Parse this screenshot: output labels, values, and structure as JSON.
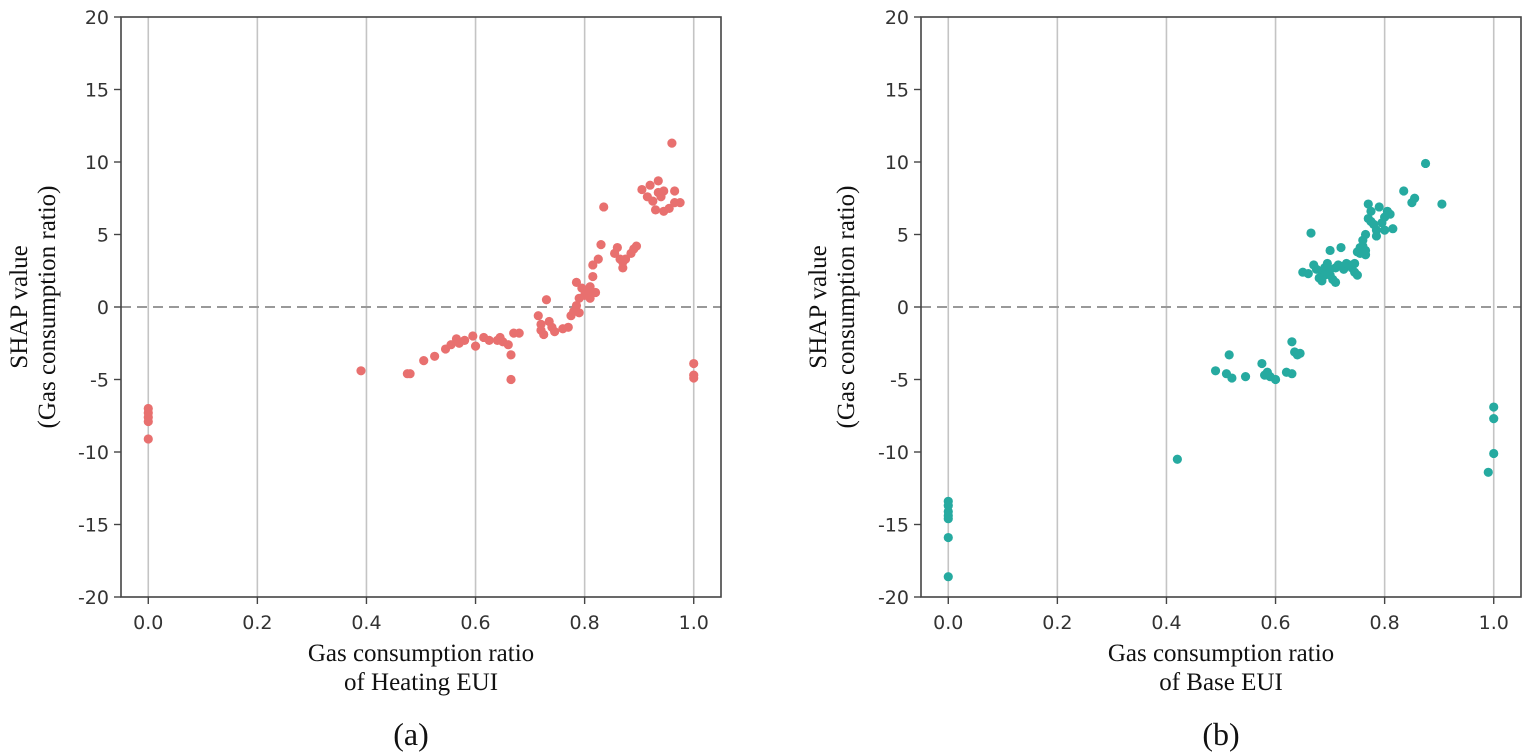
{
  "chart_data": [
    {
      "type": "scatter",
      "caption": "(a)",
      "xlabel": [
        "Gas consumption ratio",
        "of Heating EUI"
      ],
      "ylabel": [
        "SHAP value",
        "(Gas consumption ratio)"
      ],
      "xlim": [
        -0.05,
        1.05
      ],
      "ylim": [
        -20,
        20
      ],
      "xticks": [
        "0.0",
        "0.2",
        "0.4",
        "0.6",
        "0.8",
        "1.0"
      ],
      "xtick_values": [
        0.0,
        0.2,
        0.4,
        0.6,
        0.8,
        1.0
      ],
      "yticks": [
        "20",
        "15",
        "10",
        "5",
        "0",
        "-5",
        "-10",
        "-15",
        "-20"
      ],
      "ytick_values": [
        20,
        15,
        10,
        5,
        0,
        -5,
        -10,
        -15,
        -20
      ],
      "grid": "vertical",
      "reference_line": 0,
      "color": "#e8706f",
      "points": [
        [
          0.0,
          -7.0
        ],
        [
          0.0,
          -7.3
        ],
        [
          0.0,
          -7.6
        ],
        [
          0.0,
          -7.9
        ],
        [
          0.0,
          -9.1
        ],
        [
          0.39,
          -4.4
        ],
        [
          0.475,
          -4.6
        ],
        [
          0.48,
          -4.6
        ],
        [
          0.505,
          -3.7
        ],
        [
          0.525,
          -3.4
        ],
        [
          0.545,
          -2.9
        ],
        [
          0.555,
          -2.6
        ],
        [
          0.565,
          -2.2
        ],
        [
          0.57,
          -2.5
        ],
        [
          0.58,
          -2.3
        ],
        [
          0.595,
          -2.0
        ],
        [
          0.6,
          -2.7
        ],
        [
          0.615,
          -2.1
        ],
        [
          0.625,
          -2.3
        ],
        [
          0.64,
          -2.3
        ],
        [
          0.645,
          -2.1
        ],
        [
          0.65,
          -2.4
        ],
        [
          0.66,
          -2.6
        ],
        [
          0.665,
          -3.3
        ],
        [
          0.665,
          -5.0
        ],
        [
          0.67,
          -1.8
        ],
        [
          0.68,
          -1.8
        ],
        [
          0.715,
          -0.6
        ],
        [
          0.72,
          -1.2
        ],
        [
          0.72,
          -1.6
        ],
        [
          0.725,
          -1.9
        ],
        [
          0.73,
          0.5
        ],
        [
          0.735,
          -1.0
        ],
        [
          0.74,
          -1.4
        ],
        [
          0.745,
          -1.7
        ],
        [
          0.76,
          -1.5
        ],
        [
          0.77,
          -1.4
        ],
        [
          0.775,
          -0.6
        ],
        [
          0.78,
          -0.3
        ],
        [
          0.785,
          0.1
        ],
        [
          0.785,
          1.7
        ],
        [
          0.79,
          -0.4
        ],
        [
          0.79,
          0.6
        ],
        [
          0.795,
          1.3
        ],
        [
          0.8,
          0.8
        ],
        [
          0.805,
          1.0
        ],
        [
          0.81,
          0.6
        ],
        [
          0.81,
          1.4
        ],
        [
          0.815,
          2.1
        ],
        [
          0.815,
          2.9
        ],
        [
          0.82,
          1.0
        ],
        [
          0.825,
          3.3
        ],
        [
          0.83,
          4.3
        ],
        [
          0.835,
          6.9
        ],
        [
          0.855,
          3.7
        ],
        [
          0.86,
          4.1
        ],
        [
          0.865,
          3.3
        ],
        [
          0.87,
          3.1
        ],
        [
          0.87,
          2.7
        ],
        [
          0.875,
          3.3
        ],
        [
          0.885,
          3.7
        ],
        [
          0.89,
          4.0
        ],
        [
          0.895,
          4.2
        ],
        [
          0.905,
          8.1
        ],
        [
          0.915,
          7.6
        ],
        [
          0.92,
          8.4
        ],
        [
          0.925,
          7.3
        ],
        [
          0.93,
          6.7
        ],
        [
          0.935,
          8.7
        ],
        [
          0.935,
          7.9
        ],
        [
          0.94,
          7.6
        ],
        [
          0.945,
          8.0
        ],
        [
          0.945,
          6.6
        ],
        [
          0.955,
          6.8
        ],
        [
          0.96,
          11.3
        ],
        [
          0.965,
          8.0
        ],
        [
          0.965,
          7.2
        ],
        [
          0.975,
          7.2
        ],
        [
          1.0,
          -3.9
        ],
        [
          1.0,
          -4.7
        ],
        [
          1.0,
          -4.9
        ]
      ]
    },
    {
      "type": "scatter",
      "caption": "(b)",
      "xlabel": [
        "Gas consumption ratio",
        "of Base EUI"
      ],
      "ylabel": [
        "SHAP value",
        "(Gas consumption ratio)"
      ],
      "xlim": [
        -0.05,
        1.05
      ],
      "ylim": [
        -20,
        20
      ],
      "xticks": [
        "0.0",
        "0.2",
        "0.4",
        "0.6",
        "0.8",
        "1.0"
      ],
      "xtick_values": [
        0.0,
        0.2,
        0.4,
        0.6,
        0.8,
        1.0
      ],
      "yticks": [
        "20",
        "15",
        "10",
        "5",
        "0",
        "-5",
        "-10",
        "-15",
        "-20"
      ],
      "ytick_values": [
        20,
        15,
        10,
        5,
        0,
        -5,
        -10,
        -15,
        -20
      ],
      "grid": "vertical",
      "reference_line": 0,
      "color": "#26aaa0",
      "points": [
        [
          0.0,
          -13.4
        ],
        [
          0.0,
          -13.7
        ],
        [
          0.0,
          -14.1
        ],
        [
          0.0,
          -14.4
        ],
        [
          0.0,
          -14.6
        ],
        [
          0.0,
          -15.9
        ],
        [
          0.0,
          -18.6
        ],
        [
          0.42,
          -10.5
        ],
        [
          0.49,
          -4.4
        ],
        [
          0.51,
          -4.6
        ],
        [
          0.515,
          -3.3
        ],
        [
          0.52,
          -4.9
        ],
        [
          0.545,
          -4.8
        ],
        [
          0.575,
          -3.9
        ],
        [
          0.58,
          -4.7
        ],
        [
          0.585,
          -4.5
        ],
        [
          0.59,
          -4.8
        ],
        [
          0.6,
          -5.0
        ],
        [
          0.62,
          -4.5
        ],
        [
          0.63,
          -4.6
        ],
        [
          0.63,
          -2.4
        ],
        [
          0.635,
          -3.1
        ],
        [
          0.64,
          -3.3
        ],
        [
          0.645,
          -3.2
        ],
        [
          0.65,
          2.4
        ],
        [
          0.66,
          2.3
        ],
        [
          0.665,
          5.1
        ],
        [
          0.67,
          2.9
        ],
        [
          0.675,
          2.6
        ],
        [
          0.68,
          2.0
        ],
        [
          0.685,
          1.8
        ],
        [
          0.685,
          2.4
        ],
        [
          0.69,
          2.7
        ],
        [
          0.69,
          2.2
        ],
        [
          0.695,
          3.0
        ],
        [
          0.7,
          3.9
        ],
        [
          0.7,
          2.6
        ],
        [
          0.7,
          2.2
        ],
        [
          0.705,
          1.9
        ],
        [
          0.71,
          2.7
        ],
        [
          0.71,
          1.7
        ],
        [
          0.715,
          2.9
        ],
        [
          0.72,
          2.8
        ],
        [
          0.72,
          4.1
        ],
        [
          0.725,
          2.6
        ],
        [
          0.73,
          3.0
        ],
        [
          0.735,
          2.9
        ],
        [
          0.74,
          2.7
        ],
        [
          0.745,
          3.0
        ],
        [
          0.745,
          2.4
        ],
        [
          0.75,
          3.8
        ],
        [
          0.75,
          2.2
        ],
        [
          0.755,
          4.1
        ],
        [
          0.755,
          3.7
        ],
        [
          0.76,
          4.6
        ],
        [
          0.76,
          4.2
        ],
        [
          0.765,
          5.0
        ],
        [
          0.765,
          3.9
        ],
        [
          0.765,
          3.6
        ],
        [
          0.77,
          6.1
        ],
        [
          0.77,
          7.1
        ],
        [
          0.775,
          6.6
        ],
        [
          0.775,
          5.9
        ],
        [
          0.78,
          5.7
        ],
        [
          0.785,
          5.3
        ],
        [
          0.785,
          4.9
        ],
        [
          0.79,
          6.9
        ],
        [
          0.795,
          5.8
        ],
        [
          0.8,
          6.2
        ],
        [
          0.8,
          5.3
        ],
        [
          0.805,
          6.6
        ],
        [
          0.81,
          6.4
        ],
        [
          0.815,
          5.4
        ],
        [
          0.835,
          8.0
        ],
        [
          0.85,
          7.2
        ],
        [
          0.855,
          7.5
        ],
        [
          0.875,
          9.9
        ],
        [
          0.905,
          7.1
        ],
        [
          0.99,
          -11.4
        ],
        [
          1.0,
          -6.9
        ],
        [
          1.0,
          -7.7
        ],
        [
          1.0,
          -10.1
        ]
      ]
    }
  ]
}
